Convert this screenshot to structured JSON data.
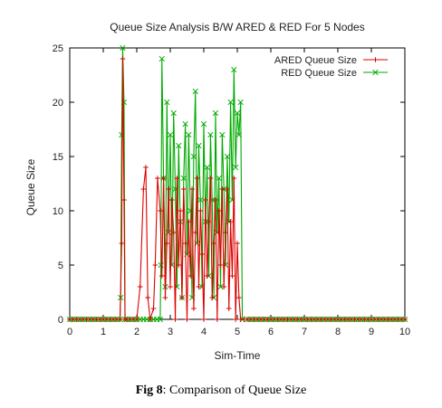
{
  "chart_data": {
    "type": "line",
    "title": "Queue Size Analysis B/W ARED & RED For 5 Nodes",
    "xlabel": "Sim-Time",
    "ylabel": "Queue Size",
    "xlim": [
      0,
      10
    ],
    "ylim": [
      0,
      25
    ],
    "x_ticks": [
      "0",
      "1",
      "2",
      "3",
      "4",
      "5",
      "6",
      "7",
      "8",
      "9",
      "10"
    ],
    "y_ticks": [
      "0",
      "5",
      "10",
      "15",
      "20",
      "25"
    ],
    "grid": false,
    "legend_position": "top-right",
    "series": [
      {
        "name": "ARED Queue Size",
        "color": "#dd0000",
        "marker": "+",
        "points": [
          [
            0,
            0
          ],
          [
            1.5,
            0
          ],
          [
            1.55,
            7
          ],
          [
            1.58,
            24
          ],
          [
            1.62,
            11
          ],
          [
            1.65,
            0
          ],
          [
            2.0,
            0
          ],
          [
            2.1,
            3
          ],
          [
            2.2,
            12
          ],
          [
            2.27,
            14
          ],
          [
            2.33,
            2
          ],
          [
            2.4,
            0
          ],
          [
            2.5,
            1
          ],
          [
            2.55,
            5
          ],
          [
            2.62,
            13
          ],
          [
            2.7,
            10
          ],
          [
            2.75,
            4
          ],
          [
            2.8,
            13
          ],
          [
            2.85,
            2
          ],
          [
            2.9,
            7
          ],
          [
            2.95,
            12
          ],
          [
            3.0,
            3
          ],
          [
            3.05,
            11
          ],
          [
            3.1,
            8
          ],
          [
            3.15,
            0
          ],
          [
            3.2,
            13
          ],
          [
            3.25,
            5
          ],
          [
            3.3,
            10
          ],
          [
            3.35,
            2
          ],
          [
            3.4,
            12
          ],
          [
            3.45,
            7
          ],
          [
            3.5,
            0
          ],
          [
            3.55,
            9
          ],
          [
            3.6,
            4
          ],
          [
            3.65,
            12
          ],
          [
            3.7,
            1
          ],
          [
            3.75,
            8
          ],
          [
            3.8,
            13
          ],
          [
            3.85,
            3
          ],
          [
            3.9,
            10
          ],
          [
            3.95,
            6
          ],
          [
            4.0,
            0
          ],
          [
            4.05,
            11
          ],
          [
            4.1,
            4
          ],
          [
            4.15,
            9
          ],
          [
            4.2,
            13
          ],
          [
            4.25,
            2
          ],
          [
            4.3,
            7
          ],
          [
            4.35,
            11
          ],
          [
            4.4,
            0
          ],
          [
            4.45,
            10
          ],
          [
            4.5,
            5
          ],
          [
            4.55,
            12
          ],
          [
            4.6,
            3
          ],
          [
            4.65,
            8
          ],
          [
            4.7,
            12
          ],
          [
            4.75,
            1
          ],
          [
            4.8,
            9
          ],
          [
            4.85,
            4
          ],
          [
            4.9,
            13
          ],
          [
            4.95,
            0
          ],
          [
            5.0,
            7
          ],
          [
            5.05,
            2
          ],
          [
            5.1,
            0
          ],
          [
            10,
            0
          ]
        ]
      },
      {
        "name": "RED Queue Size",
        "color": "#00aa00",
        "marker": "x",
        "points": [
          [
            0,
            0
          ],
          [
            1.5,
            0
          ],
          [
            1.52,
            2
          ],
          [
            1.55,
            17
          ],
          [
            1.58,
            25
          ],
          [
            1.62,
            20
          ],
          [
            1.65,
            0
          ],
          [
            2.7,
            0
          ],
          [
            2.72,
            5
          ],
          [
            2.75,
            24
          ],
          [
            2.8,
            13
          ],
          [
            2.85,
            3
          ],
          [
            2.9,
            20
          ],
          [
            2.95,
            8
          ],
          [
            3.0,
            17
          ],
          [
            3.05,
            5
          ],
          [
            3.1,
            19
          ],
          [
            3.15,
            12
          ],
          [
            3.2,
            3
          ],
          [
            3.25,
            16
          ],
          [
            3.3,
            9
          ],
          [
            3.35,
            2
          ],
          [
            3.4,
            13
          ],
          [
            3.45,
            18
          ],
          [
            3.5,
            6
          ],
          [
            3.55,
            17
          ],
          [
            3.6,
            10
          ],
          [
            3.65,
            2
          ],
          [
            3.7,
            15
          ],
          [
            3.75,
            21
          ],
          [
            3.8,
            7
          ],
          [
            3.85,
            16
          ],
          [
            3.9,
            11
          ],
          [
            3.95,
            3
          ],
          [
            4.0,
            18
          ],
          [
            4.05,
            9
          ],
          [
            4.1,
            14
          ],
          [
            4.15,
            4
          ],
          [
            4.2,
            17
          ],
          [
            4.25,
            11
          ],
          [
            4.3,
            2
          ],
          [
            4.35,
            19
          ],
          [
            4.4,
            8
          ],
          [
            4.45,
            13
          ],
          [
            4.5,
            3
          ],
          [
            4.55,
            17
          ],
          [
            4.6,
            12
          ],
          [
            4.65,
            5
          ],
          [
            4.7,
            15
          ],
          [
            4.75,
            9
          ],
          [
            4.8,
            20
          ],
          [
            4.85,
            11
          ],
          [
            4.9,
            23
          ],
          [
            4.95,
            14
          ],
          [
            5.0,
            19
          ],
          [
            5.05,
            17
          ],
          [
            5.1,
            20
          ],
          [
            5.15,
            0
          ],
          [
            10,
            0
          ]
        ]
      }
    ]
  },
  "caption": {
    "label": "Fig 8",
    "text": ": Comparison of Queue Size"
  }
}
